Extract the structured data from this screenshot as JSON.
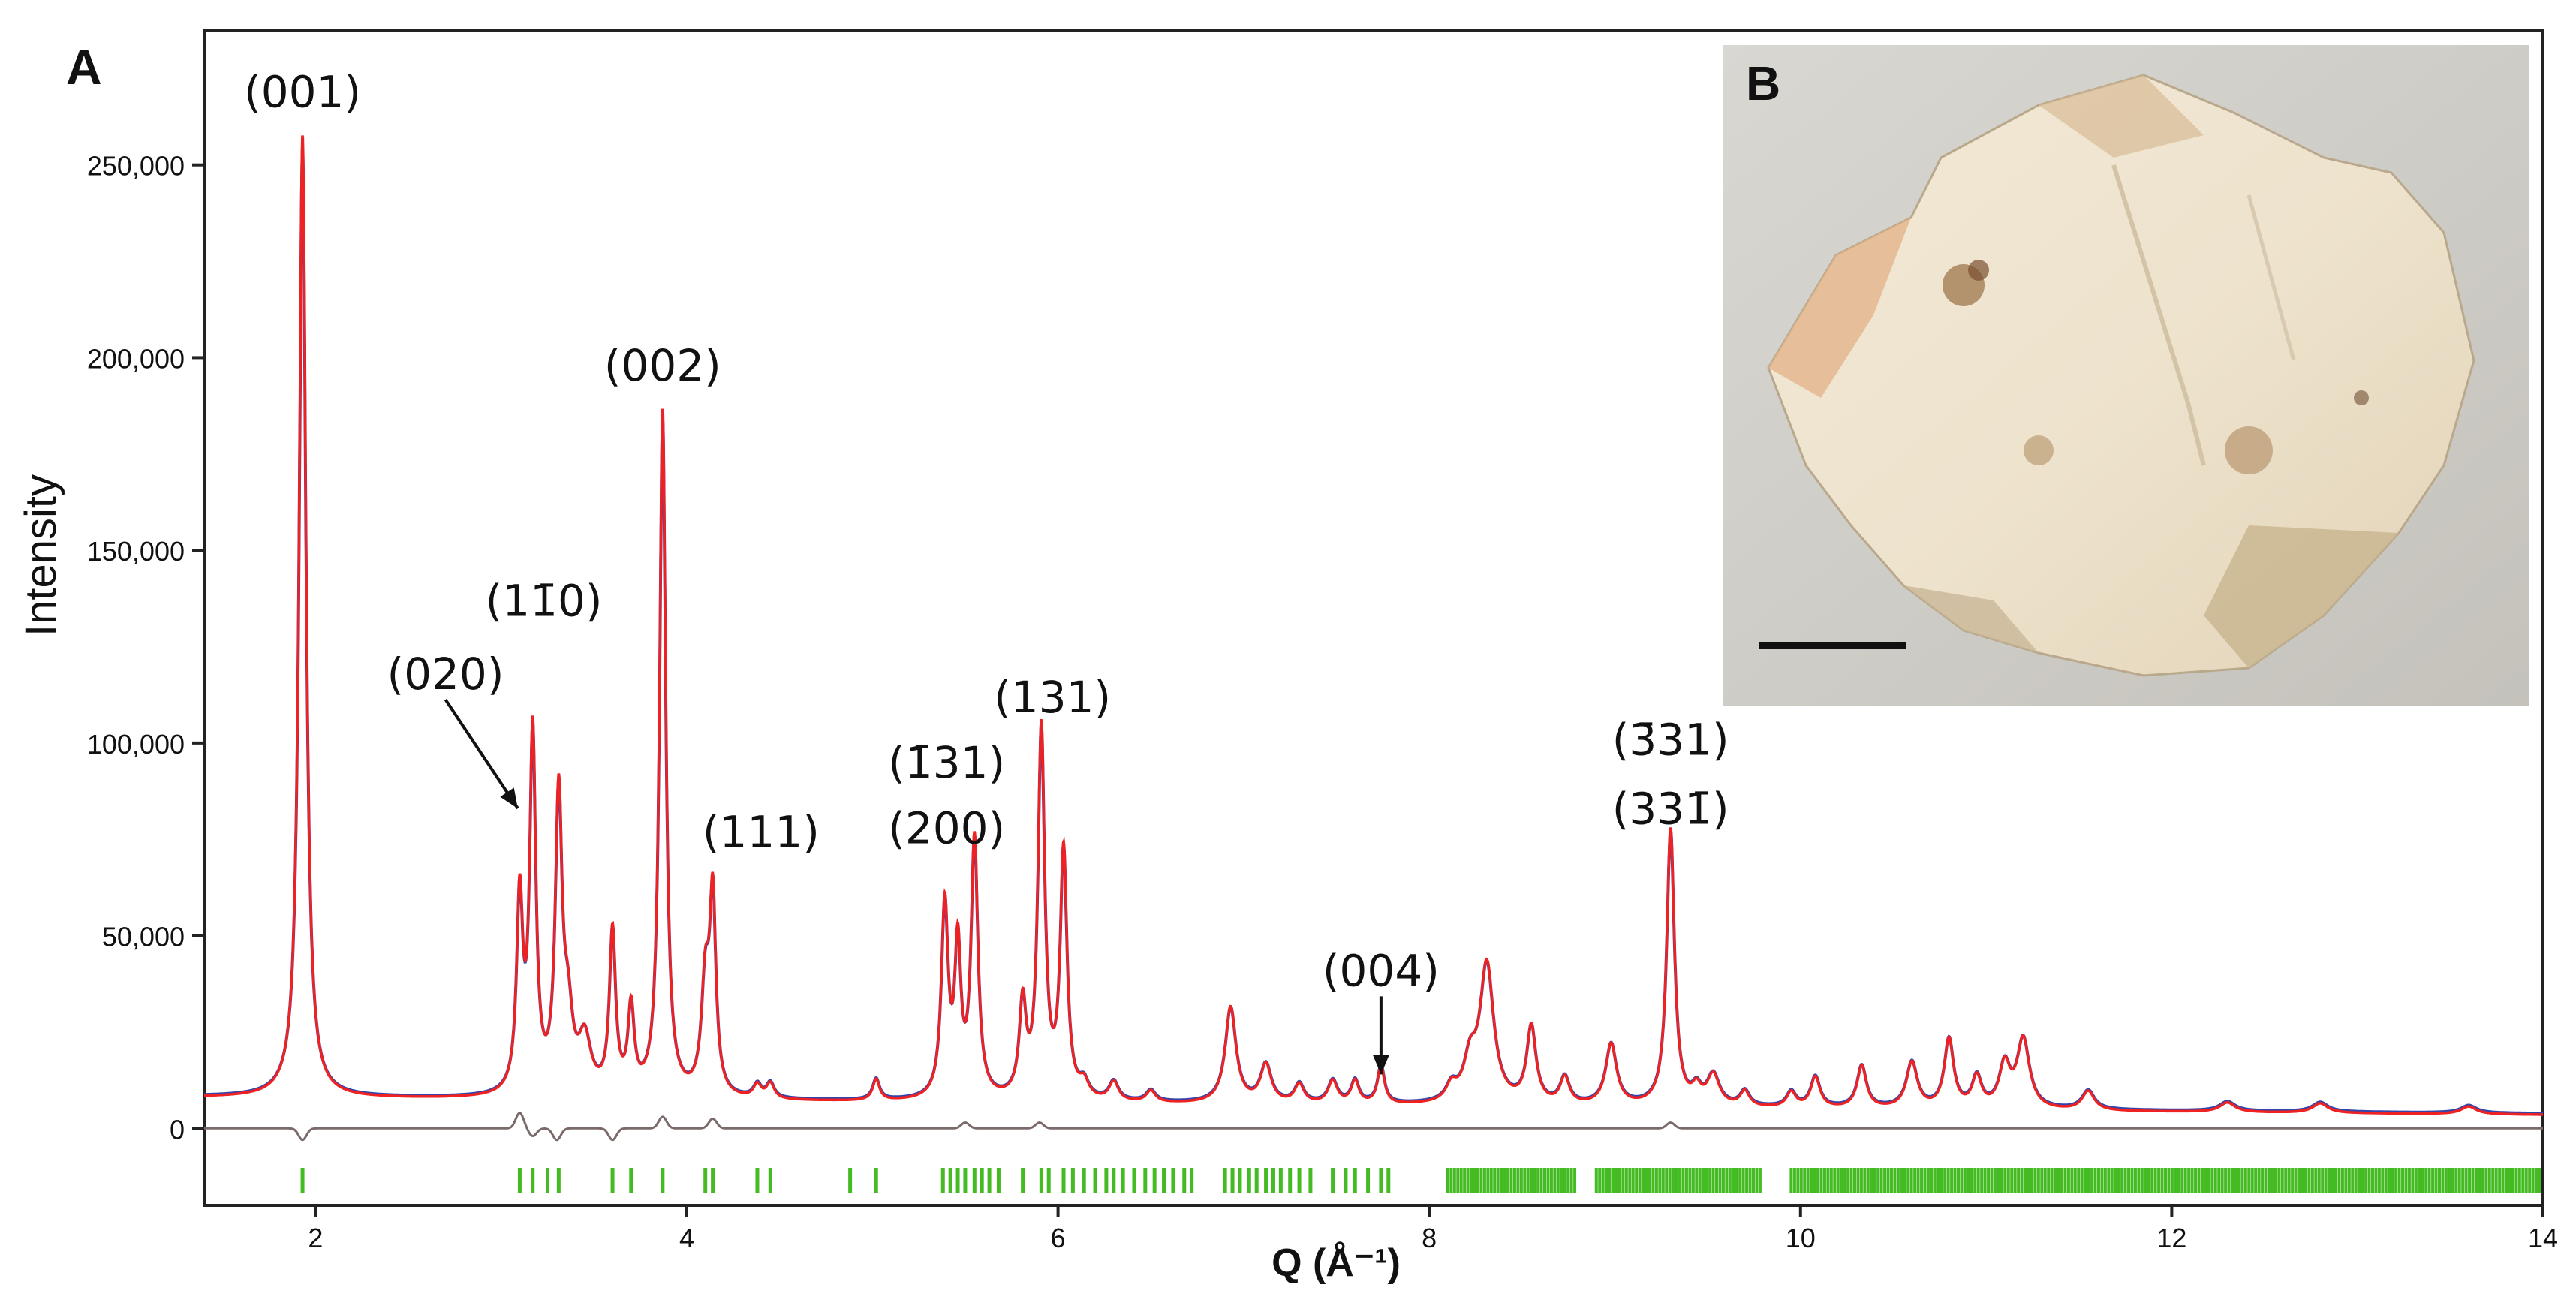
{
  "panels": {
    "a": "A",
    "b": "B"
  },
  "chart_data": {
    "type": "line",
    "xlabel": "Q (Å⁻¹)",
    "ylabel": "Intensity",
    "xlim": [
      1.4,
      14
    ],
    "ylim": [
      -20000,
      285000
    ],
    "xticks": [
      2,
      4,
      6,
      8,
      10,
      12,
      14
    ],
    "xtick_labels": [
      "2",
      "4",
      "6",
      "8",
      "10",
      "12",
      "14"
    ],
    "yticks": [
      0,
      50000,
      100000,
      150000,
      200000,
      250000
    ],
    "ytick_labels": [
      "0",
      "50,000",
      "100,000",
      "150,000",
      "200,000",
      "250,000"
    ],
    "grid": false,
    "colors": {
      "fit": "#ee2222",
      "observed": "#3344aa",
      "difference": "#7a6a6a",
      "reflections": "#44bb22"
    },
    "background": {
      "start": 8000,
      "end": 3500
    },
    "peaks": [
      {
        "x": 1.93,
        "y": 250000,
        "w": 0.022
      },
      {
        "x": 3.1,
        "y": 50000,
        "w": 0.02
      },
      {
        "x": 3.17,
        "y": 93000,
        "w": 0.02
      },
      {
        "x": 3.31,
        "y": 76000,
        "w": 0.022
      },
      {
        "x": 3.36,
        "y": 18000,
        "w": 0.03
      },
      {
        "x": 3.45,
        "y": 14000,
        "w": 0.04
      },
      {
        "x": 3.6,
        "y": 42000,
        "w": 0.02
      },
      {
        "x": 3.7,
        "y": 22000,
        "w": 0.02
      },
      {
        "x": 3.87,
        "y": 178000,
        "w": 0.02
      },
      {
        "x": 4.1,
        "y": 28000,
        "w": 0.025
      },
      {
        "x": 4.14,
        "y": 50000,
        "w": 0.02
      },
      {
        "x": 4.38,
        "y": 3500,
        "w": 0.025
      },
      {
        "x": 4.45,
        "y": 4000,
        "w": 0.025
      },
      {
        "x": 5.02,
        "y": 5500,
        "w": 0.022
      },
      {
        "x": 5.39,
        "y": 50000,
        "w": 0.022
      },
      {
        "x": 5.46,
        "y": 38000,
        "w": 0.02
      },
      {
        "x": 5.55,
        "y": 67000,
        "w": 0.022
      },
      {
        "x": 5.81,
        "y": 24000,
        "w": 0.022
      },
      {
        "x": 5.91,
        "y": 96000,
        "w": 0.022
      },
      {
        "x": 6.03,
        "y": 64000,
        "w": 0.022
      },
      {
        "x": 6.14,
        "y": 4000,
        "w": 0.03
      },
      {
        "x": 6.3,
        "y": 5000,
        "w": 0.03
      },
      {
        "x": 6.5,
        "y": 3000,
        "w": 0.03
      },
      {
        "x": 6.93,
        "y": 25000,
        "w": 0.035
      },
      {
        "x": 7.12,
        "y": 10000,
        "w": 0.035
      },
      {
        "x": 7.3,
        "y": 5000,
        "w": 0.03
      },
      {
        "x": 7.48,
        "y": 6000,
        "w": 0.03
      },
      {
        "x": 7.6,
        "y": 6000,
        "w": 0.025
      },
      {
        "x": 7.74,
        "y": 10000,
        "w": 0.022
      },
      {
        "x": 8.12,
        "y": 4000,
        "w": 0.035
      },
      {
        "x": 8.22,
        "y": 10000,
        "w": 0.04
      },
      {
        "x": 8.31,
        "y": 36000,
        "w": 0.045
      },
      {
        "x": 8.55,
        "y": 20000,
        "w": 0.03
      },
      {
        "x": 8.73,
        "y": 7000,
        "w": 0.03
      },
      {
        "x": 8.98,
        "y": 16000,
        "w": 0.035
      },
      {
        "x": 9.3,
        "y": 72000,
        "w": 0.025
      },
      {
        "x": 9.44,
        "y": 4000,
        "w": 0.03
      },
      {
        "x": 9.53,
        "y": 8000,
        "w": 0.04
      },
      {
        "x": 9.7,
        "y": 4000,
        "w": 0.03
      },
      {
        "x": 9.95,
        "y": 4000,
        "w": 0.03
      },
      {
        "x": 10.08,
        "y": 8000,
        "w": 0.03
      },
      {
        "x": 10.33,
        "y": 11000,
        "w": 0.03
      },
      {
        "x": 10.6,
        "y": 12000,
        "w": 0.035
      },
      {
        "x": 10.8,
        "y": 18000,
        "w": 0.03
      },
      {
        "x": 10.95,
        "y": 8000,
        "w": 0.03
      },
      {
        "x": 11.1,
        "y": 11000,
        "w": 0.035
      },
      {
        "x": 11.2,
        "y": 18000,
        "w": 0.04
      },
      {
        "x": 11.55,
        "y": 5000,
        "w": 0.04
      },
      {
        "x": 12.3,
        "y": 2500,
        "w": 0.05
      },
      {
        "x": 12.8,
        "y": 2500,
        "w": 0.05
      },
      {
        "x": 13.6,
        "y": 2000,
        "w": 0.05
      }
    ],
    "difference_features": [
      {
        "x": 1.93,
        "y": -3000
      },
      {
        "x": 3.1,
        "y": 4000
      },
      {
        "x": 3.17,
        "y": -2000
      },
      {
        "x": 3.3,
        "y": -3000
      },
      {
        "x": 3.6,
        "y": -3000
      },
      {
        "x": 3.87,
        "y": 3000
      },
      {
        "x": 4.14,
        "y": 2500
      },
      {
        "x": 5.5,
        "y": 1500
      },
      {
        "x": 5.9,
        "y": 1500
      },
      {
        "x": 9.3,
        "y": 1500
      }
    ],
    "reflection_ticks": [
      1.93,
      3.1,
      3.17,
      3.25,
      3.31,
      3.6,
      3.7,
      3.87,
      4.1,
      4.14,
      4.38,
      4.45,
      4.88,
      5.02,
      5.38,
      5.42,
      5.46,
      5.5,
      5.55,
      5.59,
      5.63,
      5.68,
      5.81,
      5.91,
      5.95,
      6.03,
      6.08,
      6.14,
      6.2,
      6.26,
      6.3,
      6.35,
      6.41,
      6.47,
      6.52,
      6.57,
      6.62,
      6.68,
      6.72,
      6.9,
      6.94,
      6.98,
      7.03,
      7.07,
      7.12,
      7.16,
      7.2,
      7.25,
      7.3,
      7.36,
      7.48,
      7.55,
      7.6,
      7.67,
      7.74,
      7.78
    ],
    "reflection_bands": [
      [
        8.1,
        8.8
      ],
      [
        8.9,
        9.8
      ],
      [
        9.95,
        14
      ]
    ],
    "annotations": [
      {
        "text": "(001)",
        "x": 1.93,
        "y": 265000,
        "arrow": false
      },
      {
        "text": "(020)",
        "x": 2.7,
        "y": 114000,
        "arrow": true,
        "ax": 3.09,
        "ay": 83000
      },
      {
        "text": "(11̄0)",
        "x": 3.23,
        "y": 133000,
        "arrow": false
      },
      {
        "text": "(002)",
        "x": 3.87,
        "y": 194000,
        "arrow": false
      },
      {
        "text": "(111)",
        "x": 4.4,
        "y": 73000,
        "arrow": false
      },
      {
        "text": "(1̄31)",
        "x": 5.4,
        "y": 91000,
        "arrow": false
      },
      {
        "text": "(200)",
        "x": 5.4,
        "y": 74000,
        "arrow": false
      },
      {
        "text": "(131)",
        "x": 5.97,
        "y": 108000,
        "arrow": false
      },
      {
        "text": "(004)",
        "x": 7.74,
        "y": 37000,
        "arrow": true,
        "ax": 7.74,
        "ay": 14000
      },
      {
        "text": "(3̄31)",
        "x": 9.3,
        "y": 97000,
        "arrow": false
      },
      {
        "text": "(331̄)",
        "x": 9.3,
        "y": 79000,
        "arrow": false
      }
    ]
  }
}
